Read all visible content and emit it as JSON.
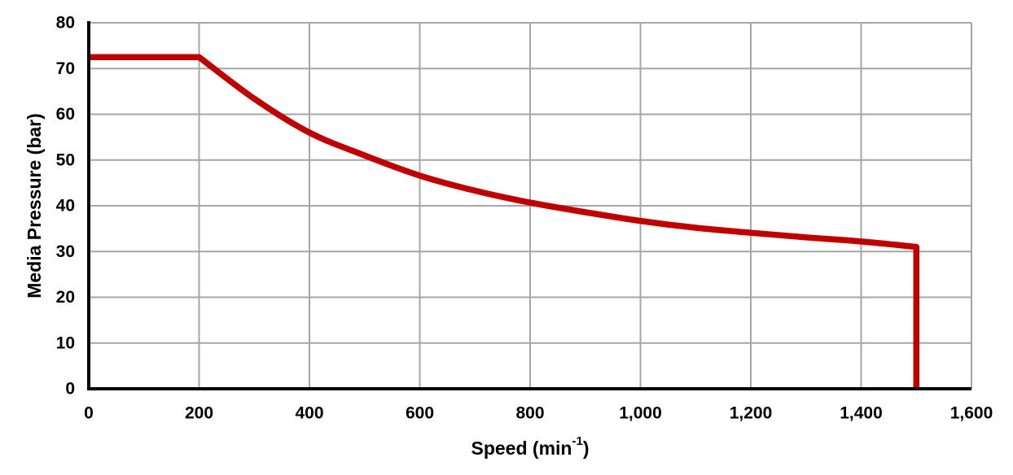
{
  "canvas": {
    "background": "#FFFFFF"
  },
  "chart_data": {
    "type": "line",
    "title": "",
    "xlabel": "Speed (min⁻¹)",
    "xlabel_parts": {
      "prefix": "Speed (min",
      "superscript": "-1",
      "suffix": ")"
    },
    "ylabel": "Media Pressure (bar)",
    "xlim": [
      0,
      1600
    ],
    "ylim": [
      0,
      80
    ],
    "x_ticks": [
      0,
      200,
      400,
      600,
      800,
      1000,
      1200,
      1400,
      1600
    ],
    "x_tick_labels": [
      "0",
      "200",
      "400",
      "600",
      "800",
      "1,000",
      "1,200",
      "1,400",
      "1,600"
    ],
    "y_ticks": [
      0,
      10,
      20,
      30,
      40,
      50,
      60,
      70,
      80
    ],
    "y_tick_labels": [
      "0",
      "10",
      "20",
      "30",
      "40",
      "50",
      "60",
      "70",
      "80"
    ],
    "grid": true,
    "legend": false,
    "series": [
      {
        "color": "#C00000",
        "stroke_width": 7.5,
        "flat_segment": [
          [
            0,
            72.5
          ],
          [
            200,
            72.5
          ]
        ],
        "curve_points": [
          [
            200,
            72.5
          ],
          [
            300,
            63.4
          ],
          [
            400,
            56.0
          ],
          [
            500,
            51.0
          ],
          [
            600,
            46.6
          ],
          [
            700,
            43.3
          ],
          [
            800,
            40.7
          ],
          [
            900,
            38.6
          ],
          [
            1000,
            36.7
          ],
          [
            1100,
            35.2
          ],
          [
            1200,
            34.1
          ],
          [
            1300,
            33.1
          ],
          [
            1400,
            32.2
          ],
          [
            1500,
            31.0
          ]
        ],
        "cutoff_segment": [
          [
            1500,
            31.0
          ],
          [
            1500,
            0
          ]
        ]
      }
    ],
    "colors": {
      "line": "#C00000",
      "gridline": "#A6A6A6",
      "axis": "#000000",
      "text": "#000000",
      "background": "#FFFFFF"
    }
  }
}
